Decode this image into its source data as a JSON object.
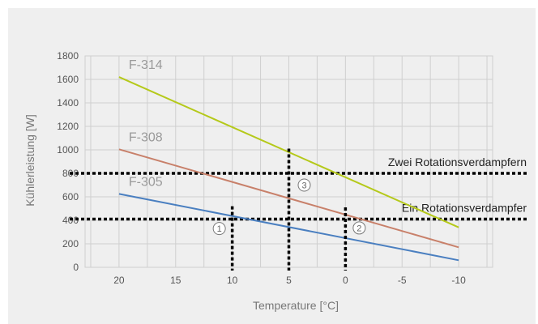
{
  "chart_data": {
    "type": "line",
    "xlabel": "Temperature [°C]",
    "ylabel": "Kühlerleistung [W]",
    "xlim": [
      23,
      -13
    ],
    "ylim": [
      0,
      1800
    ],
    "x_ticks": [
      20,
      15,
      10,
      5,
      0,
      -5,
      -10
    ],
    "y_ticks": [
      0,
      200,
      400,
      600,
      800,
      1000,
      1200,
      1400,
      1600,
      1800
    ],
    "grid": true,
    "series": [
      {
        "name": "F-314",
        "color": "#b5c91a",
        "x": [
          20,
          -10
        ],
        "y": [
          1620,
          340
        ]
      },
      {
        "name": "F-308",
        "color": "#c8806a",
        "x": [
          20,
          -10
        ],
        "y": [
          1005,
          170
        ]
      },
      {
        "name": "F-305",
        "color": "#4a7fc0",
        "x": [
          20,
          -10
        ],
        "y": [
          625,
          60
        ]
      }
    ],
    "reference_lines": [
      {
        "label": "Zwei Rotationsverdampfern",
        "y": 800
      },
      {
        "label": "Ein Rotationsverdampfer",
        "y": 410
      }
    ],
    "markers": [
      {
        "label": "1",
        "x": 10,
        "y_top": 520
      },
      {
        "label": "3",
        "x": 5,
        "y_top": 1010
      },
      {
        "label": "2",
        "x": 0,
        "y_top": 510
      }
    ]
  }
}
